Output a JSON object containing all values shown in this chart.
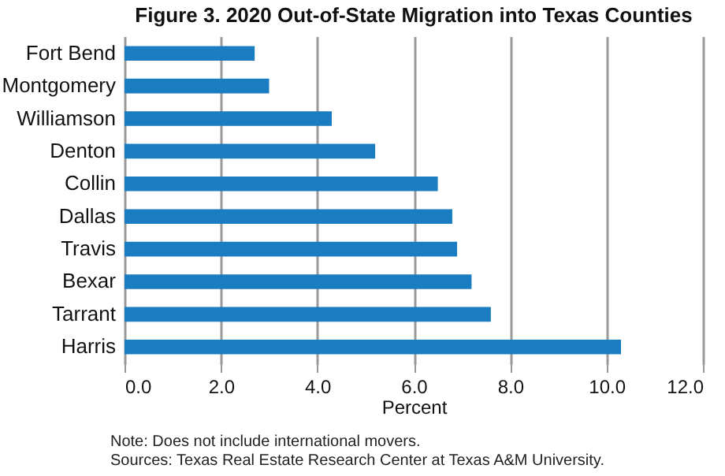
{
  "chart_data": {
    "type": "bar",
    "orientation": "horizontal",
    "title": "Figure 3. 2020 Out-of-State Migration into Texas Counties",
    "categories": [
      "Fort Bend",
      "Montgomery",
      "Williamson",
      "Denton",
      "Collin",
      "Dallas",
      "Travis",
      "Bexar",
      "Tarrant",
      "Harris"
    ],
    "values": [
      2.7,
      3.0,
      4.3,
      5.2,
      6.5,
      6.8,
      6.9,
      7.2,
      7.6,
      10.3
    ],
    "color": "#1a7cc1",
    "xlabel": "Percent",
    "xlim": [
      0,
      12
    ],
    "xticks": [
      {
        "value": 0,
        "label": "0.0"
      },
      {
        "value": 2,
        "label": "2.0"
      },
      {
        "value": 4,
        "label": "4.0"
      },
      {
        "value": 6,
        "label": "6.0"
      },
      {
        "value": 8,
        "label": "8.0"
      },
      {
        "value": 10,
        "label": "10.0"
      },
      {
        "value": 12,
        "label": "12.0"
      }
    ],
    "grid": "x",
    "annotations": [
      "Note: Does not include international movers.",
      "Sources: Texas Real Estate Research Center at Texas A&M University."
    ]
  }
}
